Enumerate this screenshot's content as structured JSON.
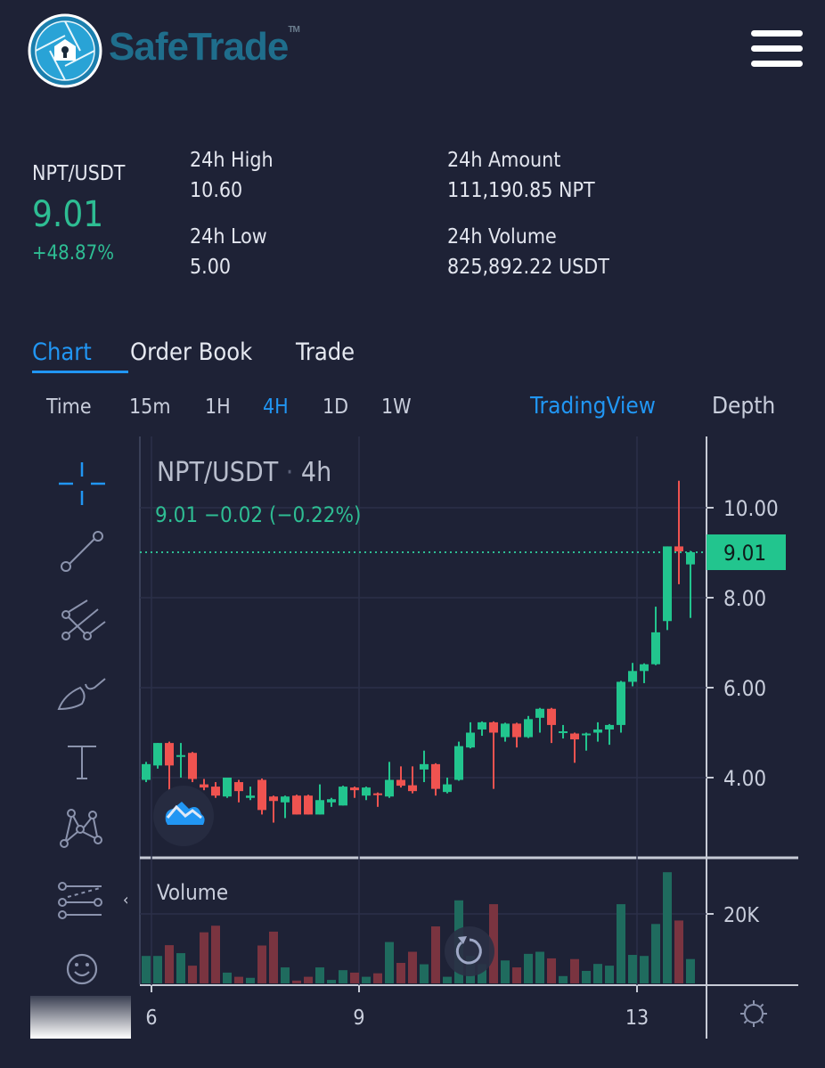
{
  "header": {
    "brand": "SafeTrade",
    "trademark": "TM",
    "menu_icon": "hamburger-icon"
  },
  "ticker": {
    "pair": "NPT/USDT",
    "last_price": "9.01",
    "change_pct": "+48.87%",
    "high_label": "24h High",
    "high": "10.60",
    "low_label": "24h Low",
    "low": "5.00",
    "amount_label": "24h Amount",
    "amount": "111,190.85 NPT",
    "volume_label": "24h Volume",
    "volume": "825,892.22 USDT"
  },
  "tabs": [
    {
      "label": "Chart",
      "active": true
    },
    {
      "label": "Order Book"
    },
    {
      "label": "Trade"
    }
  ],
  "timeframes": [
    {
      "label": "Time"
    },
    {
      "label": "15m"
    },
    {
      "label": "1H"
    },
    {
      "label": "4H",
      "active": true
    },
    {
      "label": "1D"
    },
    {
      "label": "1W"
    }
  ],
  "views": {
    "tradingview": "TradingView",
    "depth": "Depth"
  },
  "tools": [
    "crosshair-icon",
    "trend-line-icon",
    "pitchfork-icon",
    "brush-icon",
    "text-icon",
    "pattern-icon",
    "prediction-icon",
    "emoji-icon"
  ],
  "colors": {
    "up": "#26a69a",
    "up_candle": "#22c58e",
    "down": "#ef5350",
    "accent": "#2196f3",
    "background": "#1e2236"
  },
  "chart_data": {
    "type": "candlestick",
    "symbol": "NPT/USDT",
    "interval": "4h",
    "legend_values": "9.01  −0.02 (−0.22%)",
    "separator": "·",
    "last_price_label": "9.01",
    "y_ticks": [
      "10.00",
      "8.00",
      "6.00",
      "4.00"
    ],
    "ylim": [
      2.8,
      10.8
    ],
    "x_ticks": [
      "6",
      "9",
      "13"
    ],
    "volume_label": "Volume",
    "volume_ticks": [
      "20K"
    ],
    "candles": [
      [
        3.95,
        4.3,
        4.35,
        3.9
      ],
      [
        4.27,
        4.77,
        4.77,
        4.2
      ],
      [
        4.77,
        4.27,
        4.8,
        3.7
      ],
      [
        4.48,
        4.5,
        4.77,
        4.0
      ],
      [
        4.55,
        3.97,
        4.57,
        3.9
      ],
      [
        3.85,
        3.78,
        3.97,
        3.72
      ],
      [
        3.8,
        3.6,
        3.9,
        3.55
      ],
      [
        3.58,
        4.0,
        4.0,
        3.55
      ],
      [
        3.9,
        3.7,
        3.95,
        3.45
      ],
      [
        3.55,
        3.6,
        3.8,
        3.5
      ],
      [
        3.95,
        3.28,
        3.98,
        3.18
      ],
      [
        3.58,
        3.48,
        3.6,
        3.0
      ],
      [
        3.45,
        3.58,
        3.6,
        3.1
      ],
      [
        3.6,
        3.18,
        3.62,
        3.18
      ],
      [
        3.6,
        3.18,
        3.62,
        3.18
      ],
      [
        3.18,
        3.5,
        3.85,
        3.18
      ],
      [
        3.45,
        3.52,
        3.55,
        3.35
      ],
      [
        3.38,
        3.8,
        3.82,
        3.38
      ],
      [
        3.78,
        3.72,
        3.8,
        3.55
      ],
      [
        3.6,
        3.78,
        3.8,
        3.5
      ],
      [
        3.65,
        3.62,
        3.67,
        3.35
      ],
      [
        3.58,
        3.95,
        4.35,
        3.55
      ],
      [
        3.95,
        3.82,
        4.25,
        3.78
      ],
      [
        3.83,
        3.7,
        4.25,
        3.65
      ],
      [
        4.18,
        4.3,
        4.6,
        3.9
      ],
      [
        4.3,
        3.75,
        4.32,
        3.6
      ],
      [
        3.68,
        3.85,
        4.0,
        3.65
      ],
      [
        3.95,
        4.7,
        4.8,
        3.93
      ],
      [
        4.67,
        5.0,
        5.23,
        4.65
      ],
      [
        5.07,
        5.23,
        5.25,
        4.93
      ],
      [
        5.23,
        5.0,
        5.25,
        3.75
      ],
      [
        4.9,
        5.2,
        5.22,
        4.8
      ],
      [
        5.2,
        4.9,
        5.22,
        4.67
      ],
      [
        4.9,
        5.3,
        5.37,
        4.88
      ],
      [
        5.33,
        5.53,
        5.55,
        5.0
      ],
      [
        5.53,
        5.17,
        5.55,
        4.77
      ],
      [
        5.0,
        5.03,
        5.17,
        4.87
      ],
      [
        4.98,
        4.85,
        5.0,
        4.33
      ],
      [
        4.95,
        4.98,
        5.0,
        4.6
      ],
      [
        5.0,
        5.07,
        5.23,
        4.8
      ],
      [
        5.07,
        5.17,
        5.19,
        4.73
      ],
      [
        5.17,
        6.13,
        6.15,
        5.0
      ],
      [
        6.13,
        6.37,
        6.55,
        6.03
      ],
      [
        6.37,
        6.52,
        6.54,
        6.1
      ],
      [
        6.52,
        7.23,
        7.8,
        6.5
      ],
      [
        7.48,
        9.14,
        9.14,
        7.28
      ],
      [
        9.14,
        9.03,
        10.6,
        8.3
      ],
      [
        8.74,
        9.01,
        9.04,
        7.55
      ]
    ],
    "volumes": [
      7.9,
      7.9,
      11.0,
      8.7,
      5.1,
      14.7,
      16.6,
      3.1,
      1.9,
      1.6,
      10.9,
      14.9,
      4.6,
      0.8,
      1.9,
      4.6,
      1.0,
      3.8,
      3.1,
      1.9,
      2.9,
      11.9,
      5.9,
      9.1,
      5.5,
      16.4,
      1.9,
      23.9,
      7.9,
      5.5,
      22.8,
      6.6,
      4.6,
      8.5,
      9.1,
      7.2,
      2.1,
      7.0,
      3.6,
      5.6,
      5.1,
      22.8,
      8.2,
      7.9,
      17.1,
      32.0,
      18.1,
      7.0
    ],
    "volume_unit": "K"
  }
}
